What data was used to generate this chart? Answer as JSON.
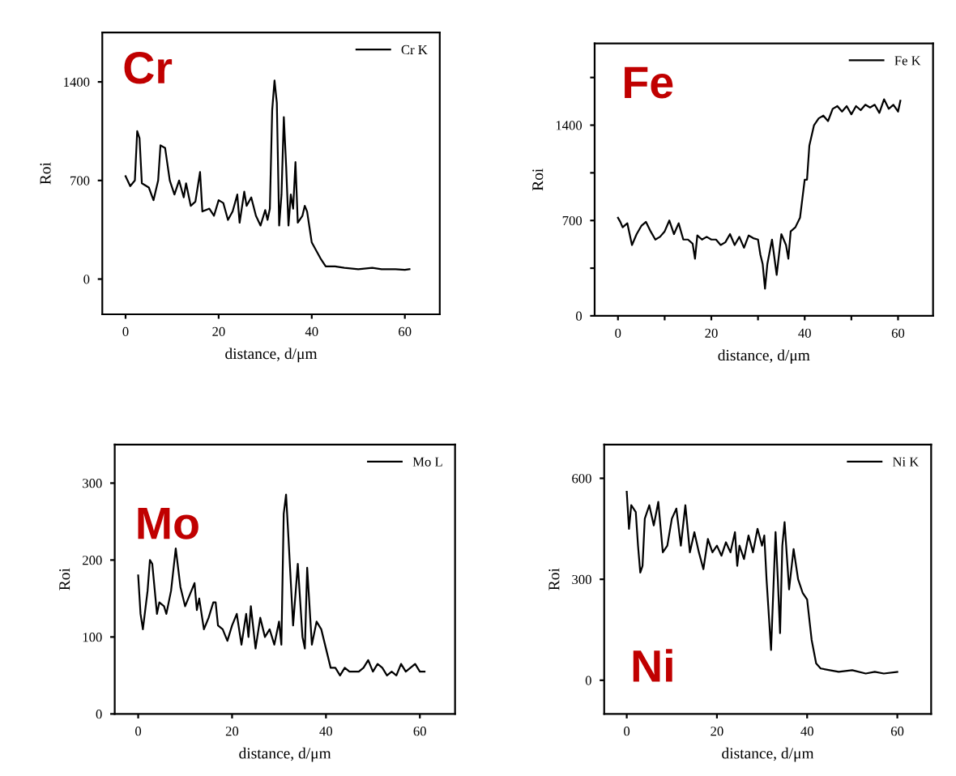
{
  "chart_data": [
    {
      "type": "line",
      "annotations": [
        "Cr"
      ],
      "xlabel": "distance, d/μm",
      "ylabel": "Roi",
      "legend": "top right",
      "grid": false,
      "xlim": [
        -5,
        67.5
      ],
      "ylim": [
        -250,
        1750
      ],
      "xticks": [
        0,
        20,
        40,
        60
      ],
      "yticks": [
        0,
        700,
        1400
      ],
      "series": [
        {
          "name": "Cr K",
          "color": "#000000",
          "x": [
            0,
            1,
            2,
            2.5,
            3,
            3.5,
            5,
            6,
            7,
            7.5,
            8.5,
            9.5,
            10.5,
            11.5,
            12.5,
            13,
            14,
            15,
            16,
            16.5,
            18,
            19,
            20,
            21,
            22,
            23,
            24,
            24.5,
            25.5,
            26,
            27,
            28,
            29,
            30,
            30.5,
            31,
            31.5,
            32,
            32.5,
            33,
            33.5,
            34,
            34.5,
            35,
            35.5,
            36,
            36.5,
            37,
            38,
            38.5,
            39,
            40,
            41,
            42,
            43,
            45,
            47,
            50,
            53,
            55,
            58,
            60,
            61
          ],
          "values": [
            730,
            660,
            700,
            1050,
            1000,
            680,
            650,
            560,
            700,
            950,
            930,
            700,
            600,
            700,
            580,
            680,
            520,
            550,
            760,
            480,
            500,
            450,
            560,
            540,
            420,
            480,
            600,
            400,
            620,
            520,
            580,
            450,
            380,
            490,
            420,
            500,
            1200,
            1410,
            1250,
            380,
            600,
            1150,
            800,
            380,
            600,
            500,
            830,
            400,
            450,
            520,
            480,
            260,
            200,
            140,
            90,
            90,
            80,
            70,
            80,
            70,
            70,
            65,
            70
          ]
        }
      ]
    },
    {
      "type": "line",
      "annotations": [
        "Fe"
      ],
      "xlabel": "distance, d/μm",
      "ylabel": "Roi",
      "legend": "top right",
      "grid": false,
      "xlim": [
        -5,
        67.5
      ],
      "ylim": [
        0,
        2000
      ],
      "xticks": [
        0,
        {
          "value": 10,
          "label": null
        },
        20,
        {
          "value": 30,
          "label": null
        },
        40,
        {
          "value": 50,
          "label": null
        },
        60
      ],
      "yticks": [
        0,
        {
          "value": 350,
          "label": null
        },
        700,
        {
          "value": 1050,
          "label": null
        },
        1400,
        {
          "value": 1750,
          "label": null
        }
      ],
      "series": [
        {
          "name": "Fe K",
          "color": "#000000",
          "x": [
            0,
            0.5,
            1,
            2,
            3,
            4,
            5,
            6,
            7,
            8,
            9,
            10,
            11,
            12,
            13,
            14,
            15,
            16,
            16.5,
            17,
            18,
            19,
            20,
            21,
            22,
            23,
            24,
            25,
            26,
            27,
            28,
            29,
            30,
            30.5,
            31,
            31.5,
            32,
            33,
            34,
            35,
            36,
            36.5,
            37,
            38,
            39,
            40,
            40.5,
            41,
            42,
            43,
            44,
            45,
            46,
            47,
            48,
            49,
            50,
            51,
            52,
            53,
            54,
            55,
            56,
            57,
            58,
            59,
            60,
            60.5
          ],
          "values": [
            720,
            690,
            650,
            680,
            520,
            600,
            660,
            690,
            620,
            560,
            580,
            620,
            700,
            600,
            680,
            560,
            560,
            530,
            420,
            590,
            560,
            580,
            560,
            560,
            520,
            540,
            600,
            520,
            580,
            500,
            590,
            570,
            560,
            450,
            380,
            200,
            380,
            560,
            300,
            600,
            520,
            420,
            620,
            650,
            720,
            1000,
            1000,
            1250,
            1400,
            1450,
            1470,
            1430,
            1520,
            1540,
            1500,
            1540,
            1480,
            1540,
            1510,
            1550,
            1530,
            1550,
            1490,
            1590,
            1520,
            1550,
            1500,
            1580
          ]
        }
      ]
    },
    {
      "type": "line",
      "annotations": [
        "Mo"
      ],
      "xlabel": "distance, d/μm",
      "ylabel": "Roi",
      "legend": "top right",
      "grid": false,
      "xlim": [
        -5,
        67.5
      ],
      "ylim": [
        0,
        350
      ],
      "xticks": [
        0,
        20,
        40,
        60
      ],
      "yticks": [
        0,
        100,
        200,
        300
      ],
      "series": [
        {
          "name": "Mo L",
          "color": "#000000",
          "x": [
            0,
            0.5,
            1,
            2,
            2.5,
            3,
            4,
            4.5,
            5.5,
            6,
            7,
            8,
            9,
            10,
            11,
            12,
            12.5,
            13,
            14,
            15,
            16,
            16.5,
            17,
            18,
            19,
            20,
            21,
            22,
            23,
            23.5,
            24,
            25,
            26,
            27,
            28,
            29,
            30,
            30.5,
            31,
            31.5,
            32,
            33,
            34,
            35,
            35.5,
            36,
            37,
            38,
            39,
            40,
            41,
            42,
            43,
            44,
            45,
            47,
            48,
            49,
            50,
            51,
            52,
            53,
            54,
            55,
            56,
            57,
            58,
            59,
            60,
            61
          ],
          "values": [
            180,
            130,
            110,
            160,
            200,
            195,
            130,
            145,
            140,
            130,
            160,
            215,
            165,
            140,
            155,
            170,
            135,
            150,
            110,
            125,
            145,
            145,
            115,
            110,
            95,
            115,
            130,
            90,
            130,
            100,
            140,
            85,
            125,
            100,
            110,
            90,
            120,
            90,
            260,
            285,
            230,
            115,
            195,
            100,
            85,
            190,
            90,
            120,
            110,
            85,
            60,
            60,
            50,
            60,
            55,
            55,
            60,
            70,
            55,
            65,
            60,
            50,
            55,
            50,
            65,
            55,
            60,
            65,
            55,
            55
          ]
        }
      ]
    },
    {
      "type": "line",
      "annotations": [
        "Ni"
      ],
      "xlabel": "distance, d/μm",
      "ylabel": "Roi",
      "legend": "top right",
      "grid": false,
      "xlim": [
        -5,
        67.5
      ],
      "ylim": [
        -100,
        700
      ],
      "xticks": [
        0,
        20,
        40,
        60
      ],
      "yticks": [
        0,
        300,
        600
      ],
      "series": [
        {
          "name": "Ni K",
          "color": "#000000",
          "x": [
            0,
            0.5,
            1,
            2,
            2.5,
            3,
            3.5,
            4,
            5,
            6,
            7,
            8,
            9,
            10,
            11,
            12,
            13,
            14,
            15,
            16,
            17,
            18,
            19,
            20,
            21,
            22,
            23,
            24,
            24.5,
            25,
            26,
            27,
            28,
            29,
            30,
            30.5,
            31,
            32,
            33,
            33.5,
            34,
            34.5,
            35,
            36,
            37,
            38,
            39,
            40,
            40.5,
            41,
            42,
            43,
            45,
            47,
            50,
            53,
            55,
            57,
            60
          ],
          "values": [
            560,
            450,
            520,
            500,
            400,
            320,
            340,
            480,
            520,
            460,
            530,
            380,
            400,
            480,
            510,
            400,
            520,
            380,
            440,
            380,
            330,
            420,
            380,
            400,
            370,
            410,
            380,
            440,
            340,
            400,
            360,
            430,
            380,
            450,
            400,
            430,
            300,
            90,
            440,
            300,
            140,
            400,
            470,
            270,
            390,
            300,
            260,
            240,
            180,
            120,
            50,
            35,
            30,
            25,
            30,
            20,
            25,
            20,
            25
          ]
        }
      ]
    }
  ]
}
